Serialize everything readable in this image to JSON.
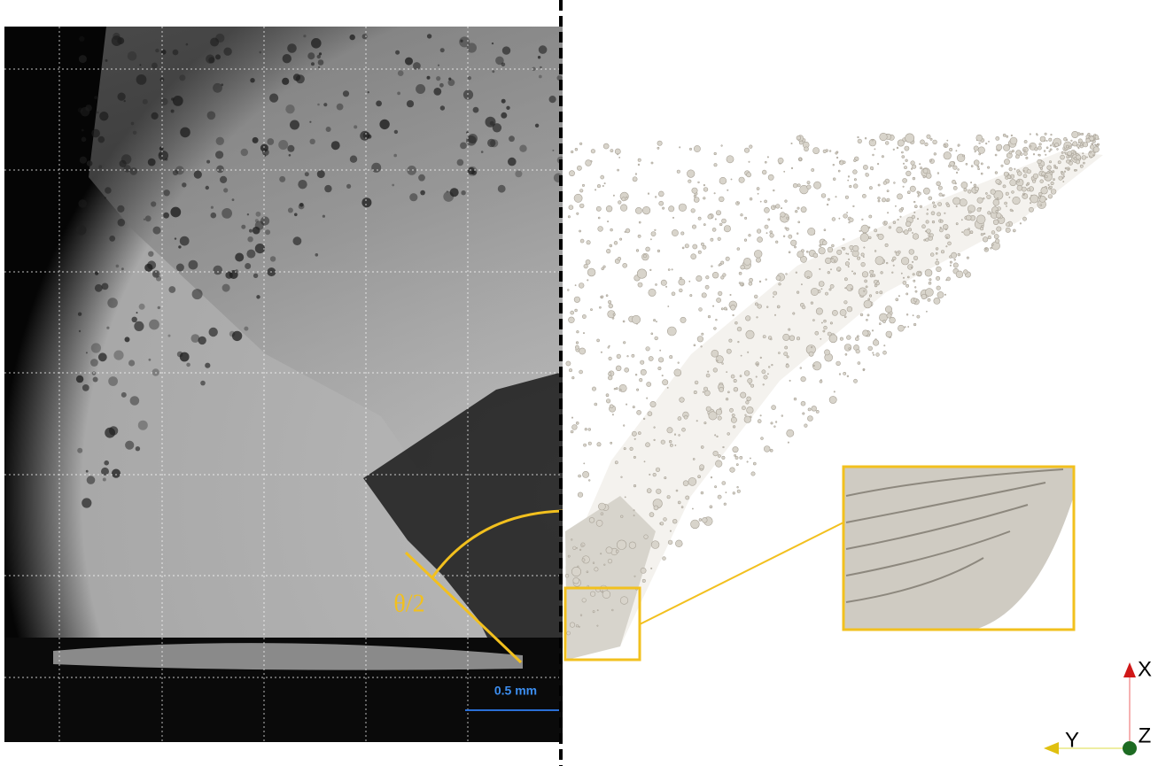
{
  "annotations": {
    "angle_label": "θ/2",
    "scale_bar": "0.5 mm"
  },
  "axes_triad": {
    "x": "X",
    "y": "Y",
    "z": "Z"
  }
}
